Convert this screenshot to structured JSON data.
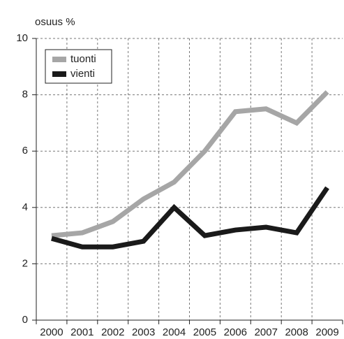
{
  "chart_data": {
    "type": "line",
    "ylabel": "osuus %",
    "categories": [
      "2000",
      "2001",
      "2002",
      "2003",
      "2004",
      "2005",
      "2006",
      "2007",
      "2008",
      "2009"
    ],
    "series": [
      {
        "name": "tuonti",
        "color": "#a6a6a6",
        "values": [
          3.0,
          3.1,
          3.5,
          4.3,
          4.9,
          6.0,
          7.4,
          7.5,
          7.0,
          8.1
        ]
      },
      {
        "name": "vienti",
        "color": "#1a1a1a",
        "values": [
          2.9,
          2.6,
          2.6,
          2.8,
          4.0,
          3.0,
          3.2,
          3.3,
          3.1,
          4.7
        ]
      }
    ],
    "ylim": [
      0,
      10
    ],
    "yticks": [
      0,
      2,
      4,
      6,
      8,
      10
    ],
    "grid": true,
    "legend": "upper left"
  }
}
